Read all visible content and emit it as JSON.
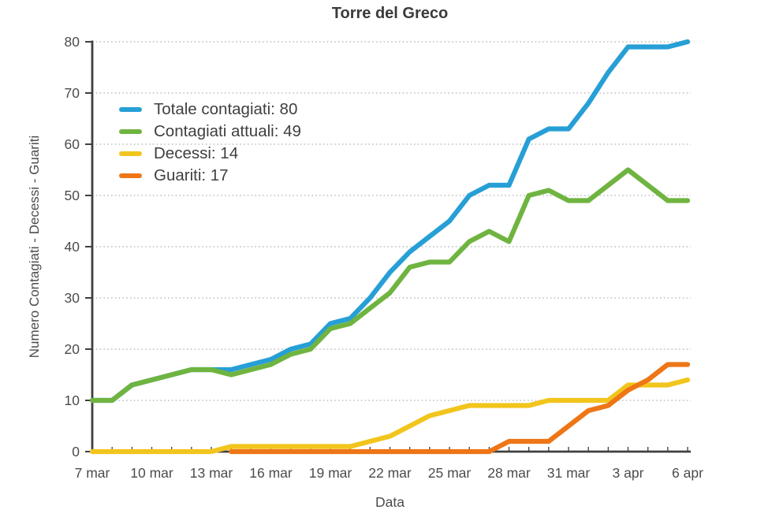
{
  "chart_data": {
    "type": "line",
    "title": "Torre del Greco",
    "xlabel": "Data",
    "ylabel": "Numero Contagiati - Decessi - Guariti",
    "ylim": [
      0,
      80
    ],
    "y_ticks": [
      0,
      10,
      20,
      30,
      40,
      50,
      60,
      70,
      80
    ],
    "x_tick_labels": [
      "7 mar",
      "10 mar",
      "13 mar",
      "16 mar",
      "19 mar",
      "22 mar",
      "25 mar",
      "28 mar",
      "31 mar",
      "3 apr",
      "6 apr"
    ],
    "grid": "dotted horizontal gridlines",
    "legend_position": "inside top-left",
    "dates": [
      "7 mar",
      "8 mar",
      "9 mar",
      "10 mar",
      "11 mar",
      "12 mar",
      "13 mar",
      "14 mar",
      "15 mar",
      "16 mar",
      "17 mar",
      "18 mar",
      "19 mar",
      "20 mar",
      "21 mar",
      "22 mar",
      "23 mar",
      "24 mar",
      "25 mar",
      "26 mar",
      "27 mar",
      "28 mar",
      "29 mar",
      "30 mar",
      "31 mar",
      "1 apr",
      "2 apr",
      "3 apr",
      "4 apr",
      "5 apr",
      "6 apr"
    ],
    "series": [
      {
        "name": "Totale contagiati",
        "legend": "Totale contagiati: 80",
        "final_value": 80,
        "color": "#279fd6",
        "values": [
          10,
          10,
          13,
          14,
          15,
          16,
          16,
          16,
          17,
          18,
          20,
          21,
          25,
          26,
          30,
          35,
          39,
          42,
          45,
          50,
          52,
          52,
          61,
          63,
          63,
          68,
          74,
          79,
          79,
          79,
          80
        ]
      },
      {
        "name": "Contagiati attuali",
        "legend": "Contagiati attuali: 49",
        "final_value": 49,
        "color": "#6fb440",
        "values": [
          10,
          10,
          13,
          14,
          15,
          16,
          16,
          15,
          16,
          17,
          19,
          20,
          24,
          25,
          28,
          31,
          36,
          37,
          37,
          41,
          43,
          41,
          50,
          51,
          49,
          49,
          52,
          55,
          52,
          49,
          49
        ]
      },
      {
        "name": "Decessi",
        "legend": "Decessi: 14",
        "final_value": 14,
        "color": "#f2c51d",
        "values": [
          0,
          0,
          0,
          0,
          0,
          0,
          0,
          1,
          1,
          1,
          1,
          1,
          1,
          1,
          2,
          3,
          5,
          7,
          8,
          9,
          9,
          9,
          9,
          10,
          10,
          10,
          10,
          13,
          13,
          13,
          14
        ]
      },
      {
        "name": "Guariti",
        "legend": "Guariti: 17",
        "final_value": 17,
        "color": "#ee7617",
        "values": [
          null,
          null,
          null,
          null,
          null,
          null,
          null,
          0,
          0,
          0,
          0,
          0,
          0,
          0,
          0,
          0,
          0,
          0,
          0,
          0,
          0,
          2,
          2,
          2,
          5,
          8,
          9,
          12,
          14,
          17,
          17
        ]
      }
    ],
    "axis_color": "#3f3f3f",
    "gridline_color": "#bfbfbf",
    "tick_label_color": "#4c4c4c"
  }
}
